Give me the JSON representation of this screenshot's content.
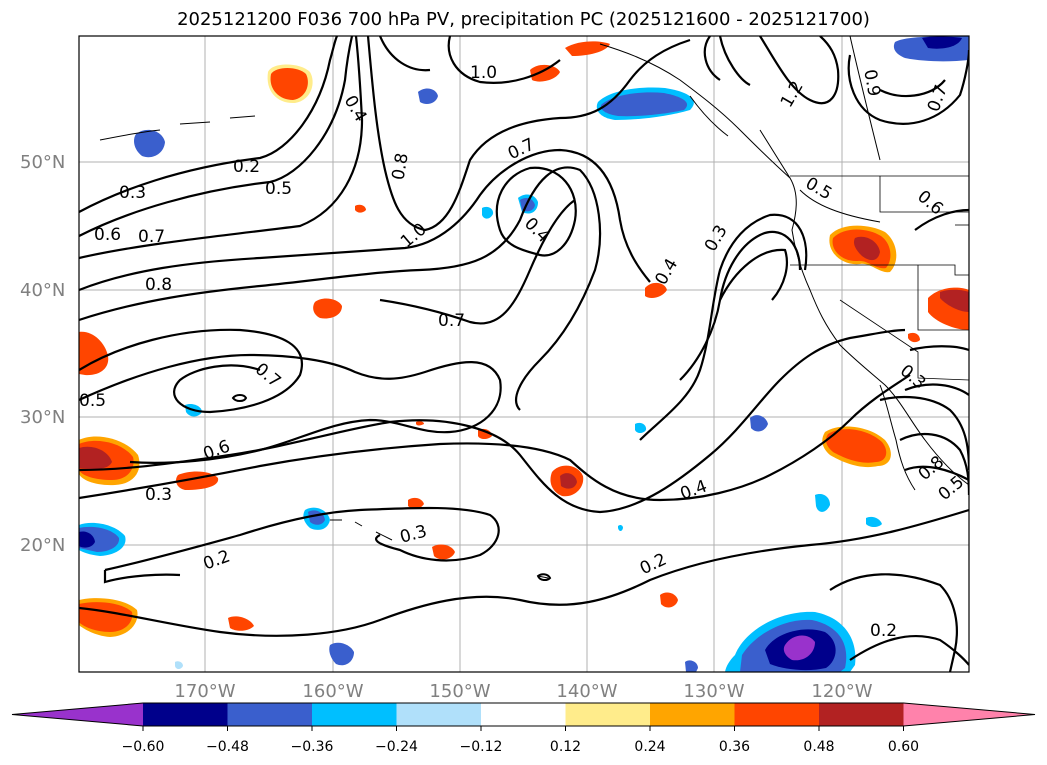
{
  "title": "2025121200 F036 700 hPa PV, precipitation PC (2025121600 - 2025121700)",
  "lat_labels": [
    "50°N",
    "40°N",
    "30°N",
    "20°N"
  ],
  "lon_labels": [
    "170°W",
    "160°W",
    "150°W",
    "140°W",
    "130°W",
    "120°W"
  ],
  "colorbar": {
    "colors": [
      "#9932cc",
      "#00008b",
      "#3a5fcd",
      "#00bfff",
      "#b0e0fa",
      "#ffffff",
      "#ffec8b",
      "#ffa500",
      "#ff4500",
      "#b22222",
      "#ff82ab"
    ],
    "tick_labels": [
      "−0.60",
      "−0.48",
      "−0.36",
      "−0.24",
      "−0.12",
      "0.12",
      "0.24",
      "0.36",
      "0.48",
      "0.60"
    ]
  },
  "contour_labels": [
    {
      "text": "1.0"
    },
    {
      "text": "0.4"
    },
    {
      "text": "0.8"
    },
    {
      "text": "0.2"
    },
    {
      "text": "0.5"
    },
    {
      "text": "0.3"
    },
    {
      "text": "0.6"
    },
    {
      "text": "0.7"
    },
    {
      "text": "1.0"
    },
    {
      "text": "0.7"
    },
    {
      "text": "0.4"
    },
    {
      "text": "0.8"
    },
    {
      "text": "0.7"
    },
    {
      "text": "0.5"
    },
    {
      "text": "0.7"
    },
    {
      "text": "0.6"
    },
    {
      "text": "0.3"
    },
    {
      "text": "0.3"
    },
    {
      "text": "0.2"
    },
    {
      "text": "0.4"
    },
    {
      "text": "0.3"
    },
    {
      "text": "0.4"
    },
    {
      "text": "0.2"
    },
    {
      "text": "0.2"
    },
    {
      "text": "0.5"
    },
    {
      "text": "0.6"
    },
    {
      "text": "0.9"
    },
    {
      "text": "0.7"
    },
    {
      "text": "1.2"
    },
    {
      "text": "0.3"
    },
    {
      "text": "0.8"
    },
    {
      "text": "0.5"
    }
  ]
}
